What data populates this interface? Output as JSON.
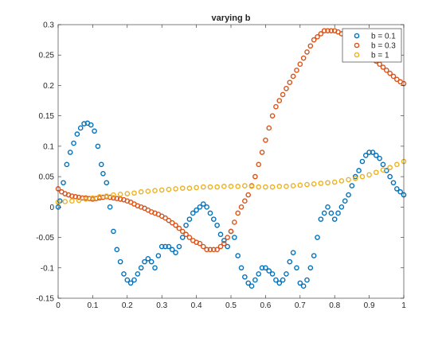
{
  "chart_data": {
    "type": "scatter",
    "title": "varying b",
    "xlabel": "",
    "ylabel": "",
    "xlim": [
      0,
      1
    ],
    "ylim": [
      -0.15,
      0.3
    ],
    "xticks": [
      0,
      0.1,
      0.2,
      0.3,
      0.4,
      0.5,
      0.6,
      0.7,
      0.8,
      0.9,
      1
    ],
    "xtick_labels": [
      "0",
      "0.1",
      "0.2",
      "0.3",
      "0.4",
      "0.5",
      "0.6",
      "0.7",
      "0.8",
      "0.9",
      "1"
    ],
    "yticks": [
      -0.15,
      -0.1,
      -0.05,
      0,
      0.05,
      0.1,
      0.15,
      0.2,
      0.25,
      0.3
    ],
    "ytick_labels": [
      "-0.15",
      "-0.1",
      "-0.05",
      "0",
      "0.05",
      "0.1",
      "0.15",
      "0.2",
      "0.25",
      "0.3"
    ],
    "grid": false,
    "legend_position": "top-right",
    "marker": "open-circle",
    "series": [
      {
        "name": "b = 0.1",
        "color": "#0072BD",
        "x": [
          0.0,
          0.005,
          0.015,
          0.025,
          0.035,
          0.045,
          0.055,
          0.065,
          0.075,
          0.085,
          0.095,
          0.105,
          0.115,
          0.125,
          0.13,
          0.14,
          0.15,
          0.16,
          0.17,
          0.18,
          0.19,
          0.2,
          0.21,
          0.22,
          0.23,
          0.24,
          0.25,
          0.26,
          0.27,
          0.28,
          0.29,
          0.3,
          0.31,
          0.32,
          0.33,
          0.34,
          0.35,
          0.36,
          0.37,
          0.38,
          0.39,
          0.4,
          0.41,
          0.42,
          0.43,
          0.44,
          0.45,
          0.46,
          0.47,
          0.48,
          0.49,
          0.5,
          0.51,
          0.52,
          0.53,
          0.54,
          0.55,
          0.56,
          0.57,
          0.58,
          0.59,
          0.6,
          0.61,
          0.62,
          0.63,
          0.64,
          0.65,
          0.66,
          0.67,
          0.68,
          0.69,
          0.7,
          0.71,
          0.72,
          0.73,
          0.74,
          0.75,
          0.76,
          0.77,
          0.78,
          0.79,
          0.8,
          0.81,
          0.82,
          0.83,
          0.84,
          0.85,
          0.86,
          0.87,
          0.88,
          0.89,
          0.9,
          0.91,
          0.92,
          0.93,
          0.94,
          0.95,
          0.96,
          0.97,
          0.98,
          0.99,
          1.0
        ],
        "y": [
          0.0,
          0.01,
          0.04,
          0.07,
          0.09,
          0.105,
          0.12,
          0.13,
          0.137,
          0.138,
          0.135,
          0.125,
          0.1,
          0.07,
          0.055,
          0.04,
          0.0,
          -0.04,
          -0.07,
          -0.09,
          -0.11,
          -0.12,
          -0.125,
          -0.12,
          -0.11,
          -0.1,
          -0.09,
          -0.085,
          -0.09,
          -0.1,
          -0.08,
          -0.065,
          -0.065,
          -0.065,
          -0.07,
          -0.075,
          -0.065,
          -0.05,
          -0.03,
          -0.02,
          -0.01,
          -0.005,
          0.0,
          0.005,
          0.0,
          -0.01,
          -0.02,
          -0.03,
          -0.045,
          -0.055,
          -0.065,
          -0.04,
          -0.05,
          -0.08,
          -0.1,
          -0.115,
          -0.125,
          -0.13,
          -0.12,
          -0.11,
          -0.1,
          -0.1,
          -0.105,
          -0.11,
          -0.12,
          -0.125,
          -0.12,
          -0.11,
          -0.09,
          -0.075,
          -0.1,
          -0.125,
          -0.13,
          -0.12,
          -0.1,
          -0.08,
          -0.05,
          -0.02,
          -0.01,
          0.0,
          -0.01,
          -0.02,
          -0.01,
          0.0,
          0.01,
          0.02,
          0.035,
          0.05,
          0.06,
          0.075,
          0.085,
          0.09,
          0.09,
          0.085,
          0.08,
          0.07,
          0.06,
          0.05,
          0.04,
          0.03,
          0.025,
          0.02
        ]
      },
      {
        "name": "b = 0.3",
        "color": "#D95319",
        "x": [
          0.0,
          0.01,
          0.02,
          0.03,
          0.04,
          0.05,
          0.06,
          0.07,
          0.08,
          0.09,
          0.1,
          0.11,
          0.12,
          0.13,
          0.14,
          0.15,
          0.16,
          0.17,
          0.18,
          0.19,
          0.2,
          0.21,
          0.22,
          0.23,
          0.24,
          0.25,
          0.26,
          0.27,
          0.28,
          0.29,
          0.3,
          0.31,
          0.32,
          0.33,
          0.34,
          0.35,
          0.36,
          0.37,
          0.38,
          0.39,
          0.4,
          0.41,
          0.42,
          0.43,
          0.44,
          0.45,
          0.46,
          0.47,
          0.48,
          0.49,
          0.5,
          0.51,
          0.52,
          0.53,
          0.54,
          0.55,
          0.56,
          0.57,
          0.58,
          0.59,
          0.6,
          0.61,
          0.62,
          0.63,
          0.64,
          0.65,
          0.66,
          0.67,
          0.68,
          0.69,
          0.7,
          0.71,
          0.72,
          0.73,
          0.74,
          0.75,
          0.76,
          0.77,
          0.78,
          0.79,
          0.8,
          0.81,
          0.82,
          0.83,
          0.84,
          0.85,
          0.86,
          0.87,
          0.88,
          0.89,
          0.9,
          0.91,
          0.92,
          0.93,
          0.94,
          0.95,
          0.96,
          0.97,
          0.98,
          0.99,
          1.0
        ],
        "y": [
          0.03,
          0.025,
          0.022,
          0.02,
          0.018,
          0.017,
          0.016,
          0.015,
          0.015,
          0.014,
          0.013,
          0.014,
          0.015,
          0.016,
          0.017,
          0.016,
          0.015,
          0.014,
          0.013,
          0.012,
          0.01,
          0.008,
          0.005,
          0.002,
          0.0,
          -0.002,
          -0.005,
          -0.008,
          -0.01,
          -0.012,
          -0.015,
          -0.018,
          -0.022,
          -0.026,
          -0.03,
          -0.035,
          -0.04,
          -0.045,
          -0.05,
          -0.055,
          -0.058,
          -0.06,
          -0.065,
          -0.07,
          -0.07,
          -0.07,
          -0.07,
          -0.065,
          -0.06,
          -0.05,
          -0.04,
          -0.025,
          -0.01,
          0.0,
          0.01,
          0.02,
          0.035,
          0.05,
          0.07,
          0.09,
          0.11,
          0.13,
          0.15,
          0.165,
          0.175,
          0.185,
          0.195,
          0.205,
          0.215,
          0.225,
          0.235,
          0.245,
          0.255,
          0.265,
          0.275,
          0.28,
          0.285,
          0.29,
          0.29,
          0.29,
          0.29,
          0.288,
          0.285,
          0.282,
          0.278,
          0.275,
          0.27,
          0.265,
          0.26,
          0.255,
          0.25,
          0.245,
          0.24,
          0.235,
          0.23,
          0.225,
          0.22,
          0.215,
          0.21,
          0.206,
          0.203
        ]
      },
      {
        "name": "b = 1",
        "color": "#EDB120",
        "x": [
          0.0,
          0.02,
          0.04,
          0.06,
          0.08,
          0.1,
          0.12,
          0.14,
          0.16,
          0.18,
          0.2,
          0.22,
          0.24,
          0.26,
          0.28,
          0.3,
          0.32,
          0.34,
          0.36,
          0.38,
          0.4,
          0.42,
          0.44,
          0.46,
          0.48,
          0.5,
          0.52,
          0.54,
          0.56,
          0.58,
          0.6,
          0.62,
          0.64,
          0.66,
          0.68,
          0.7,
          0.72,
          0.74,
          0.76,
          0.78,
          0.8,
          0.82,
          0.84,
          0.86,
          0.88,
          0.9,
          0.92,
          0.94,
          0.96,
          0.98,
          1.0
        ],
        "y": [
          0.008,
          0.009,
          0.01,
          0.011,
          0.013,
          0.015,
          0.017,
          0.018,
          0.02,
          0.021,
          0.022,
          0.023,
          0.025,
          0.026,
          0.027,
          0.028,
          0.029,
          0.03,
          0.031,
          0.031,
          0.032,
          0.033,
          0.033,
          0.033,
          0.034,
          0.034,
          0.034,
          0.035,
          0.034,
          0.033,
          0.033,
          0.033,
          0.034,
          0.034,
          0.035,
          0.036,
          0.037,
          0.038,
          0.039,
          0.04,
          0.041,
          0.043,
          0.045,
          0.047,
          0.05,
          0.053,
          0.057,
          0.061,
          0.065,
          0.07,
          0.075
        ]
      }
    ]
  }
}
